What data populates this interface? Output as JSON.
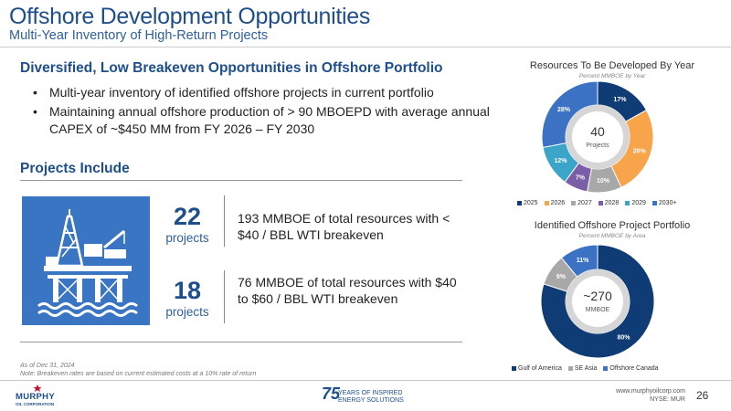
{
  "header": {
    "title": "Offshore Development Opportunities",
    "subtitle": "Multi-Year Inventory of High-Return Projects"
  },
  "main": {
    "lead": "Diversified, Low Breakeven Opportunities in Offshore Portfolio",
    "bullets": [
      "Multi-year inventory of identified offshore projects in current portfolio",
      "Maintaining annual offshore production of > 90 MBOEPD with average annual CAPEX of ~$450 MM from FY 2026 – FY 2030"
    ],
    "projects_heading": "Projects Include",
    "stats": [
      {
        "number": "22",
        "label": "projects",
        "description": "193 MMBOE of total resources with < $40 / BBL WTI breakeven"
      },
      {
        "number": "18",
        "label": "projects",
        "description": "76 MMBOE of total resources with $40 to $60 / BBL WTI breakeven"
      }
    ],
    "footnote": [
      "As of Dec 31, 2024",
      "Note: Breakeven rates are based on current estimated costs at a 10% rate of return"
    ]
  },
  "icons": {
    "rig": "offshore-platform-icon",
    "logo": "murphy-star-logo"
  },
  "colors": {
    "brand": "#1f4e8c",
    "rig_bg": "#3a75c4"
  },
  "chart_data": [
    {
      "type": "pie",
      "title": "Resources To Be Developed By Year",
      "subtitle": "Percent MMBOE by Year",
      "center_value": "40",
      "center_label": "Projects",
      "categories": [
        "2025",
        "2026",
        "2027",
        "2028",
        "2029",
        "2030+"
      ],
      "values": [
        17,
        26,
        10,
        7,
        12,
        28
      ],
      "value_labels": [
        "17%",
        "26%",
        "10%",
        "7%",
        "12%",
        "28%"
      ],
      "colors": [
        "#0f3c74",
        "#f7a44a",
        "#a8a8a8",
        "#7b5ea7",
        "#3ba4c9",
        "#3b72c4"
      ],
      "legend_position": "bottom"
    },
    {
      "type": "pie",
      "title": "Identified Offshore Project Portfolio",
      "subtitle": "Percent MMBOE by Area",
      "center_value": "~270",
      "center_label": "MMBOE",
      "categories": [
        "Gulf of America",
        "SE Asia",
        "Offshore Canada"
      ],
      "values": [
        80,
        9,
        11
      ],
      "value_labels": [
        "80%",
        "9%",
        "11%"
      ],
      "colors": [
        "#0f3c74",
        "#a8a8a8",
        "#3b72c4"
      ],
      "legend_position": "bottom"
    }
  ],
  "footer": {
    "logo_text": "MURPHY",
    "logo_sub": "OIL CORPORATION",
    "anniversary_number": "75",
    "anniversary_lines": [
      "YEARS OF INSPIRED",
      "ENERGY SOLUTIONS"
    ],
    "website": "www.murphyoilcorp.com",
    "ticker": "NYSE: MUR",
    "page_number": "26"
  }
}
